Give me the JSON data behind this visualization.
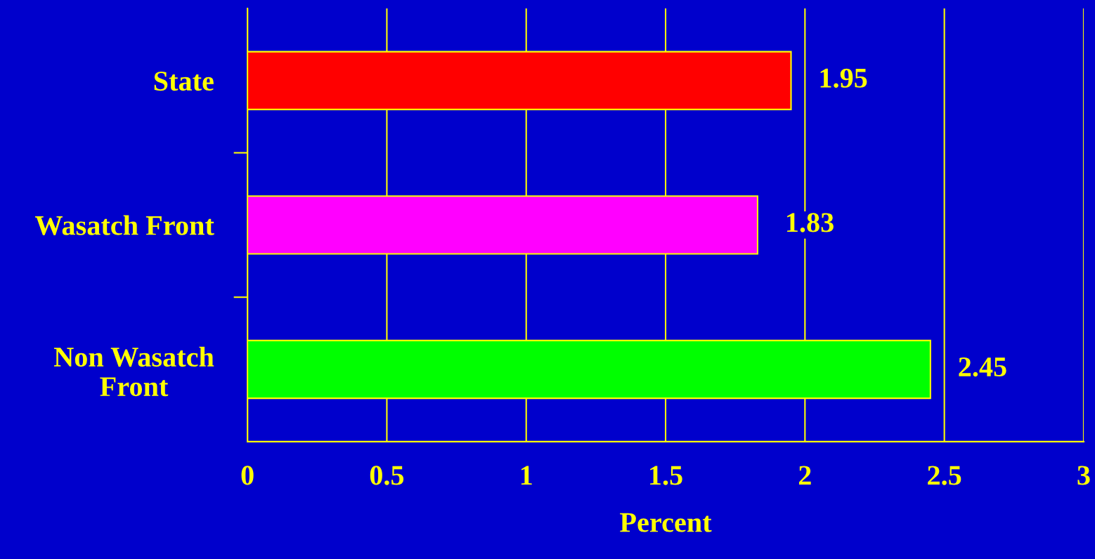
{
  "chart_data": {
    "type": "bar",
    "orientation": "horizontal",
    "xlabel": "Percent",
    "categories": [
      "State",
      "Wasatch Front",
      "Non Wasatch\nFront"
    ],
    "values": [
      1.95,
      1.83,
      2.45
    ],
    "colors": [
      "#ff0000",
      "#ff00ff",
      "#00ff00"
    ],
    "xlim": [
      0,
      3
    ],
    "xticks": [
      0,
      0.5,
      1,
      1.5,
      2,
      2.5,
      3
    ],
    "grid": "x",
    "data_labels": true
  }
}
